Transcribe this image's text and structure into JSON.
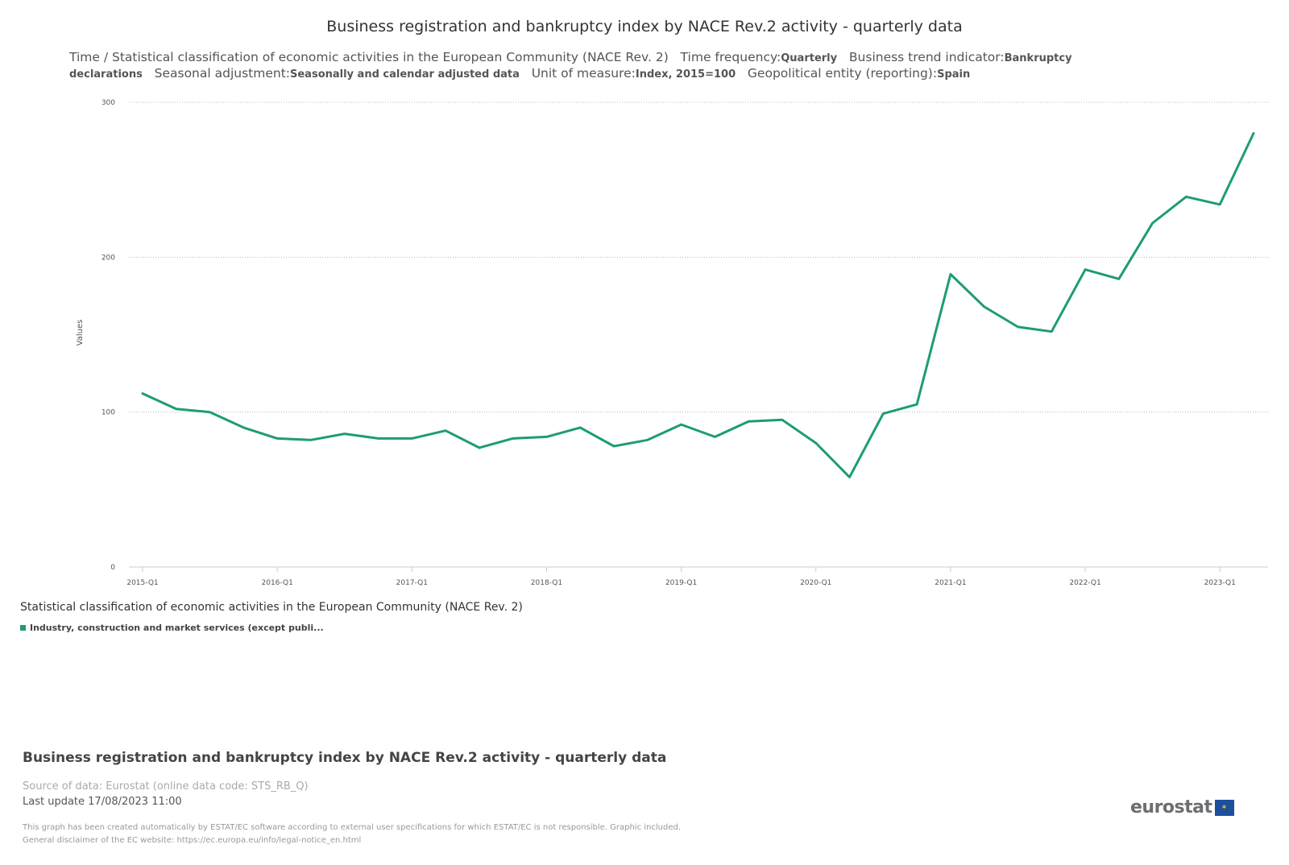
{
  "header": {
    "title": "Business registration and bankruptcy index by NACE Rev.2 activity - quarterly data",
    "dims_label": "Time / Statistical classification of economic activities in the European Community (NACE Rev. 2)",
    "freq_label": "Time frequency:",
    "freq_value": "Quarterly",
    "indic_label": "Business trend indicator:",
    "indic_value": "Bankruptcy declarations",
    "sadj_label": "Seasonal adjustment:",
    "sadj_value": "Seasonally and calendar adjusted data",
    "unit_label": "Unit of measure:",
    "unit_value": "Index, 2015=100",
    "geo_label": "Geopolitical entity (reporting):",
    "geo_value": "Spain"
  },
  "chart_data": {
    "type": "line",
    "title": "Business registration and bankruptcy index by NACE Rev.2 activity - quarterly data",
    "xlabel": "",
    "ylabel": "Values",
    "ylim": [
      0,
      300
    ],
    "yticks": [
      0,
      100,
      200,
      300
    ],
    "grid": true,
    "x": [
      "2015-Q1",
      "2015-Q2",
      "2015-Q3",
      "2015-Q4",
      "2016-Q1",
      "2016-Q2",
      "2016-Q3",
      "2016-Q4",
      "2017-Q1",
      "2017-Q2",
      "2017-Q3",
      "2017-Q4",
      "2018-Q1",
      "2018-Q2",
      "2018-Q3",
      "2018-Q4",
      "2019-Q1",
      "2019-Q2",
      "2019-Q3",
      "2019-Q4",
      "2020-Q1",
      "2020-Q2",
      "2020-Q3",
      "2020-Q4",
      "2021-Q1",
      "2021-Q2",
      "2021-Q3",
      "2021-Q4",
      "2022-Q1",
      "2022-Q2",
      "2022-Q3",
      "2022-Q4",
      "2023-Q1",
      "2023-Q2"
    ],
    "xtick_labels": [
      "2015-Q1",
      "2016-Q1",
      "2017-Q1",
      "2018-Q1",
      "2019-Q1",
      "2020-Q1",
      "2021-Q1",
      "2022-Q1",
      "2023-Q1"
    ],
    "series": [
      {
        "name": "Industry, construction and market services (except publi...",
        "color": "#1e9c74",
        "values": [
          112,
          102,
          100,
          90,
          83,
          82,
          86,
          83,
          83,
          88,
          77,
          83,
          84,
          90,
          78,
          82,
          92,
          84,
          94,
          95,
          80,
          58,
          99,
          105,
          189,
          168,
          155,
          152,
          192,
          186,
          222,
          239,
          234,
          280
        ]
      }
    ],
    "legend_title": "Statistical classification of economic activities in the European Community (NACE Rev. 2)"
  },
  "footer": {
    "title": "Business registration and bankruptcy index by NACE Rev.2 activity - quarterly data",
    "source": "Source of data: Eurostat (online data code: STS_RB_Q)",
    "last_update": "Last update 17/08/2023 11:00",
    "disclaimer1": "This graph has been created automatically by ESTAT/EC software according to external user specifications for which ESTAT/EC is not responsible. Graphic included.",
    "disclaimer2": "General disclaimer of the EC website: https://ec.europa.eu/info/legal-notice_en.html",
    "logo_text": "eurostat"
  }
}
